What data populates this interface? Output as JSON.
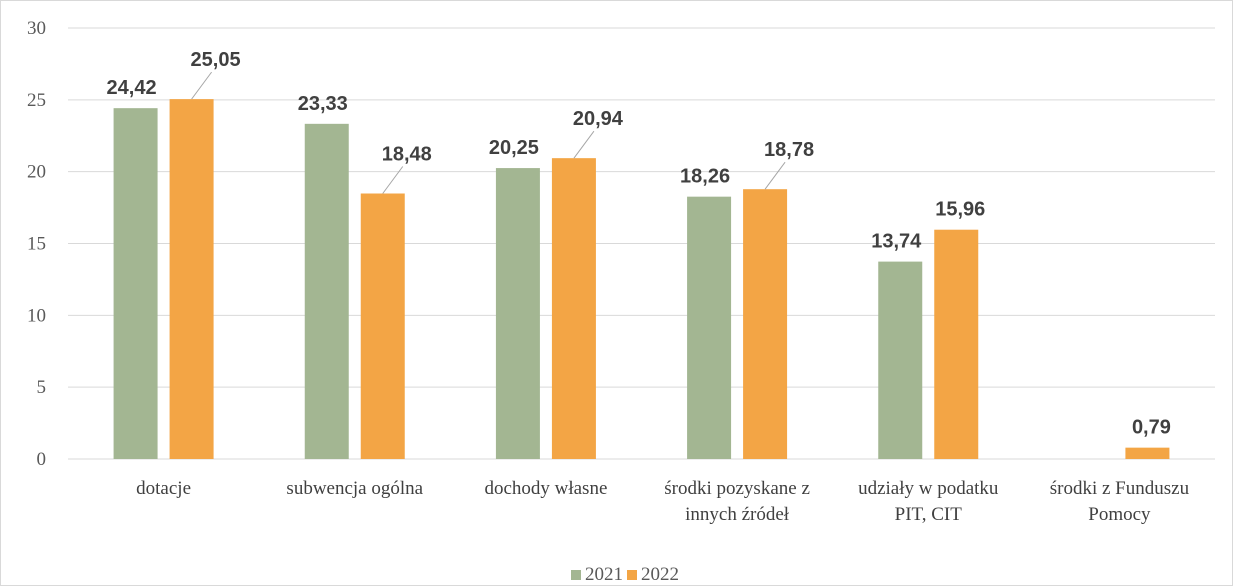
{
  "chart_data": {
    "type": "bar",
    "title": "",
    "xlabel": "",
    "ylabel": "",
    "ylim": [
      0,
      30
    ],
    "yticks": [
      "0",
      "5",
      "10",
      "15",
      "20",
      "25",
      "30"
    ],
    "grid": true,
    "legend_position": "bottom",
    "categories": [
      [
        "dotacje"
      ],
      [
        "subwencja ogólna"
      ],
      [
        "dochody własne"
      ],
      [
        "środki pozyskane z",
        "innych źródeł"
      ],
      [
        "udziały w podatku",
        "PIT, CIT"
      ],
      [
        "środki z Funduszu",
        "Pomocy"
      ]
    ],
    "series": [
      {
        "name": "2021",
        "color": "#a3b692",
        "values": [
          24.42,
          23.33,
          20.25,
          18.26,
          13.74,
          null
        ],
        "labels": [
          "24,42",
          "23,33",
          "20,25",
          "18,26",
          "13,74",
          ""
        ]
      },
      {
        "name": "2022",
        "color": "#f3a545",
        "values": [
          25.05,
          18.48,
          20.94,
          18.78,
          15.96,
          0.79
        ],
        "labels": [
          "25,05",
          "18,48",
          "20,94",
          "18,78",
          "15,96",
          "0,79"
        ]
      }
    ]
  }
}
